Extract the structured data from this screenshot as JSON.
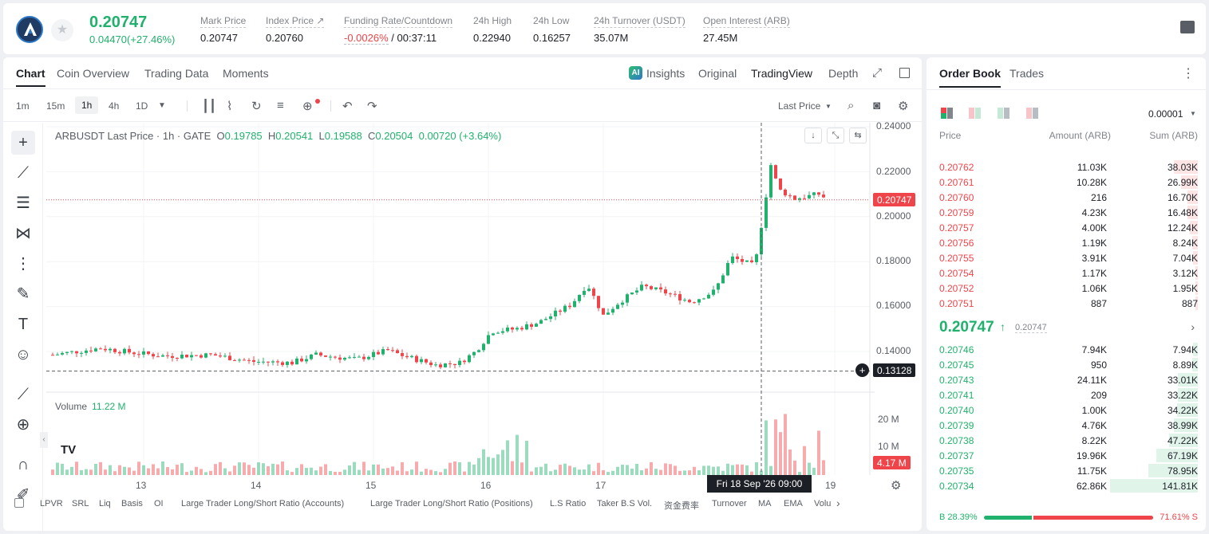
{
  "header": {
    "last_price": "0.20747",
    "change": "0.04470(+27.46%)",
    "stats": [
      {
        "label": "Mark Price",
        "value": "0.20747"
      },
      {
        "label": "Index Price ↗",
        "value": "0.20760"
      },
      {
        "label": "Funding Rate/Countdown",
        "value_a": "-0.0026%",
        "value_b": " / 00:37:11"
      },
      {
        "label": "24h High",
        "value": "0.22940"
      },
      {
        "label": "24h Low",
        "value": "0.16257"
      },
      {
        "label": "24h Turnover (USDT)",
        "value": "35.07M"
      },
      {
        "label": "Open Interest (ARB)",
        "value": "27.45M"
      }
    ]
  },
  "chart_tabs": [
    "Chart",
    "Coin Overview",
    "Trading Data",
    "Moments"
  ],
  "view_tabs": {
    "ai": "AI",
    "insights": "Insights",
    "original": "Original",
    "tradingview": "TradingView",
    "depth": "Depth"
  },
  "toolbar": {
    "intervals": [
      "1m",
      "15m",
      "1h",
      "4h",
      "1D"
    ],
    "price_type": "Last Price"
  },
  "legend": {
    "symbol": "ARBUSDT Last Price · 1h · GATE",
    "o_label": "O",
    "o": "0.19785",
    "h_label": "H",
    "h": "0.20541",
    "l_label": "L",
    "l": "0.19588",
    "c_label": "C",
    "c": "0.20504",
    "chg": "0.00720 (+3.64%)"
  },
  "volume_legend": {
    "label": "Volume",
    "value": "11.22 M"
  },
  "axes": {
    "price_ticks": [
      "0.24000",
      "0.22000",
      "0.20000",
      "0.18000",
      "0.16000",
      "0.14000"
    ],
    "current_tag": "0.20747",
    "crosshair_tag": "0.13128",
    "volume_ticks": [
      "20 M",
      "10 M"
    ],
    "volume_tag": "4.17 M",
    "x_ticks": [
      "13",
      "14",
      "15",
      "16",
      "17",
      "19"
    ],
    "crosshair_time": "Fri 18 Sep '26   09:00"
  },
  "indicators": [
    "LPVR",
    "SRL",
    "Liq",
    "Basis",
    "OI",
    "Large Trader Long/Short Ratio (Accounts)",
    "Large Trader Long/Short Ratio (Positions)",
    "L.S Ratio",
    "Taker B.S Vol.",
    "资金费率",
    "Turnover",
    "MA",
    "EMA",
    "Volu"
  ],
  "orderbook": {
    "tabs": [
      "Order Book",
      "Trades"
    ],
    "precision": "0.00001",
    "headers": [
      "Price",
      "Amount (ARB)",
      "Sum (ARB)"
    ],
    "asks": [
      {
        "price": "0.20762",
        "amount": "11.03K",
        "sum": "38.03K",
        "depth": 0.27
      },
      {
        "price": "0.20761",
        "amount": "10.28K",
        "sum": "26.99K",
        "depth": 0.19
      },
      {
        "price": "0.20760",
        "amount": "216",
        "sum": "16.70K",
        "depth": 0.12
      },
      {
        "price": "0.20759",
        "amount": "4.23K",
        "sum": "16.48K",
        "depth": 0.12
      },
      {
        "price": "0.20757",
        "amount": "4.00K",
        "sum": "12.24K",
        "depth": 0.09
      },
      {
        "price": "0.20756",
        "amount": "1.19K",
        "sum": "8.24K",
        "depth": 0.06
      },
      {
        "price": "0.20755",
        "amount": "3.91K",
        "sum": "7.04K",
        "depth": 0.05
      },
      {
        "price": "0.20754",
        "amount": "1.17K",
        "sum": "3.12K",
        "depth": 0.02
      },
      {
        "price": "0.20752",
        "amount": "1.06K",
        "sum": "1.95K",
        "depth": 0.014
      },
      {
        "price": "0.20751",
        "amount": "887",
        "sum": "887",
        "depth": 0.006
      }
    ],
    "mid_price": "0.20747",
    "mid_mark": "0.20747",
    "bids": [
      {
        "price": "0.20746",
        "amount": "7.94K",
        "sum": "7.94K",
        "depth": 0.056
      },
      {
        "price": "0.20745",
        "amount": "950",
        "sum": "8.89K",
        "depth": 0.063
      },
      {
        "price": "0.20743",
        "amount": "24.11K",
        "sum": "33.01K",
        "depth": 0.23
      },
      {
        "price": "0.20741",
        "amount": "209",
        "sum": "33.22K",
        "depth": 0.23
      },
      {
        "price": "0.20740",
        "amount": "1.00K",
        "sum": "34.22K",
        "depth": 0.24
      },
      {
        "price": "0.20739",
        "amount": "4.76K",
        "sum": "38.99K",
        "depth": 0.27
      },
      {
        "price": "0.20738",
        "amount": "8.22K",
        "sum": "47.22K",
        "depth": 0.33
      },
      {
        "price": "0.20737",
        "amount": "19.96K",
        "sum": "67.19K",
        "depth": 0.47
      },
      {
        "price": "0.20735",
        "amount": "11.75K",
        "sum": "78.95K",
        "depth": 0.56
      },
      {
        "price": "0.20734",
        "amount": "62.86K",
        "sum": "141.81K",
        "depth": 1.0
      }
    ],
    "buy_ratio": "B 28.39%",
    "sell_ratio": "71.61% S"
  },
  "colors": {
    "up": "#20b26c",
    "down": "#ef454a"
  },
  "icons": [
    "arbitrum-logo-icon",
    "star-icon",
    "ai-icon",
    "expand-icon",
    "window-icon",
    "candle-type-icon",
    "indicators-icon",
    "replay-icon",
    "template-icon",
    "add-alert-icon",
    "undo-icon",
    "redo-icon",
    "search-icon",
    "camera-icon",
    "settings-icon",
    "crosshair-icon",
    "trendline-icon",
    "fib-icon",
    "pattern-icon",
    "measure-icon",
    "brush-icon",
    "text-icon",
    "emoji-icon",
    "ruler-icon",
    "zoom-icon",
    "magnet-icon",
    "tradingview-logo-icon",
    "more-icon"
  ]
}
